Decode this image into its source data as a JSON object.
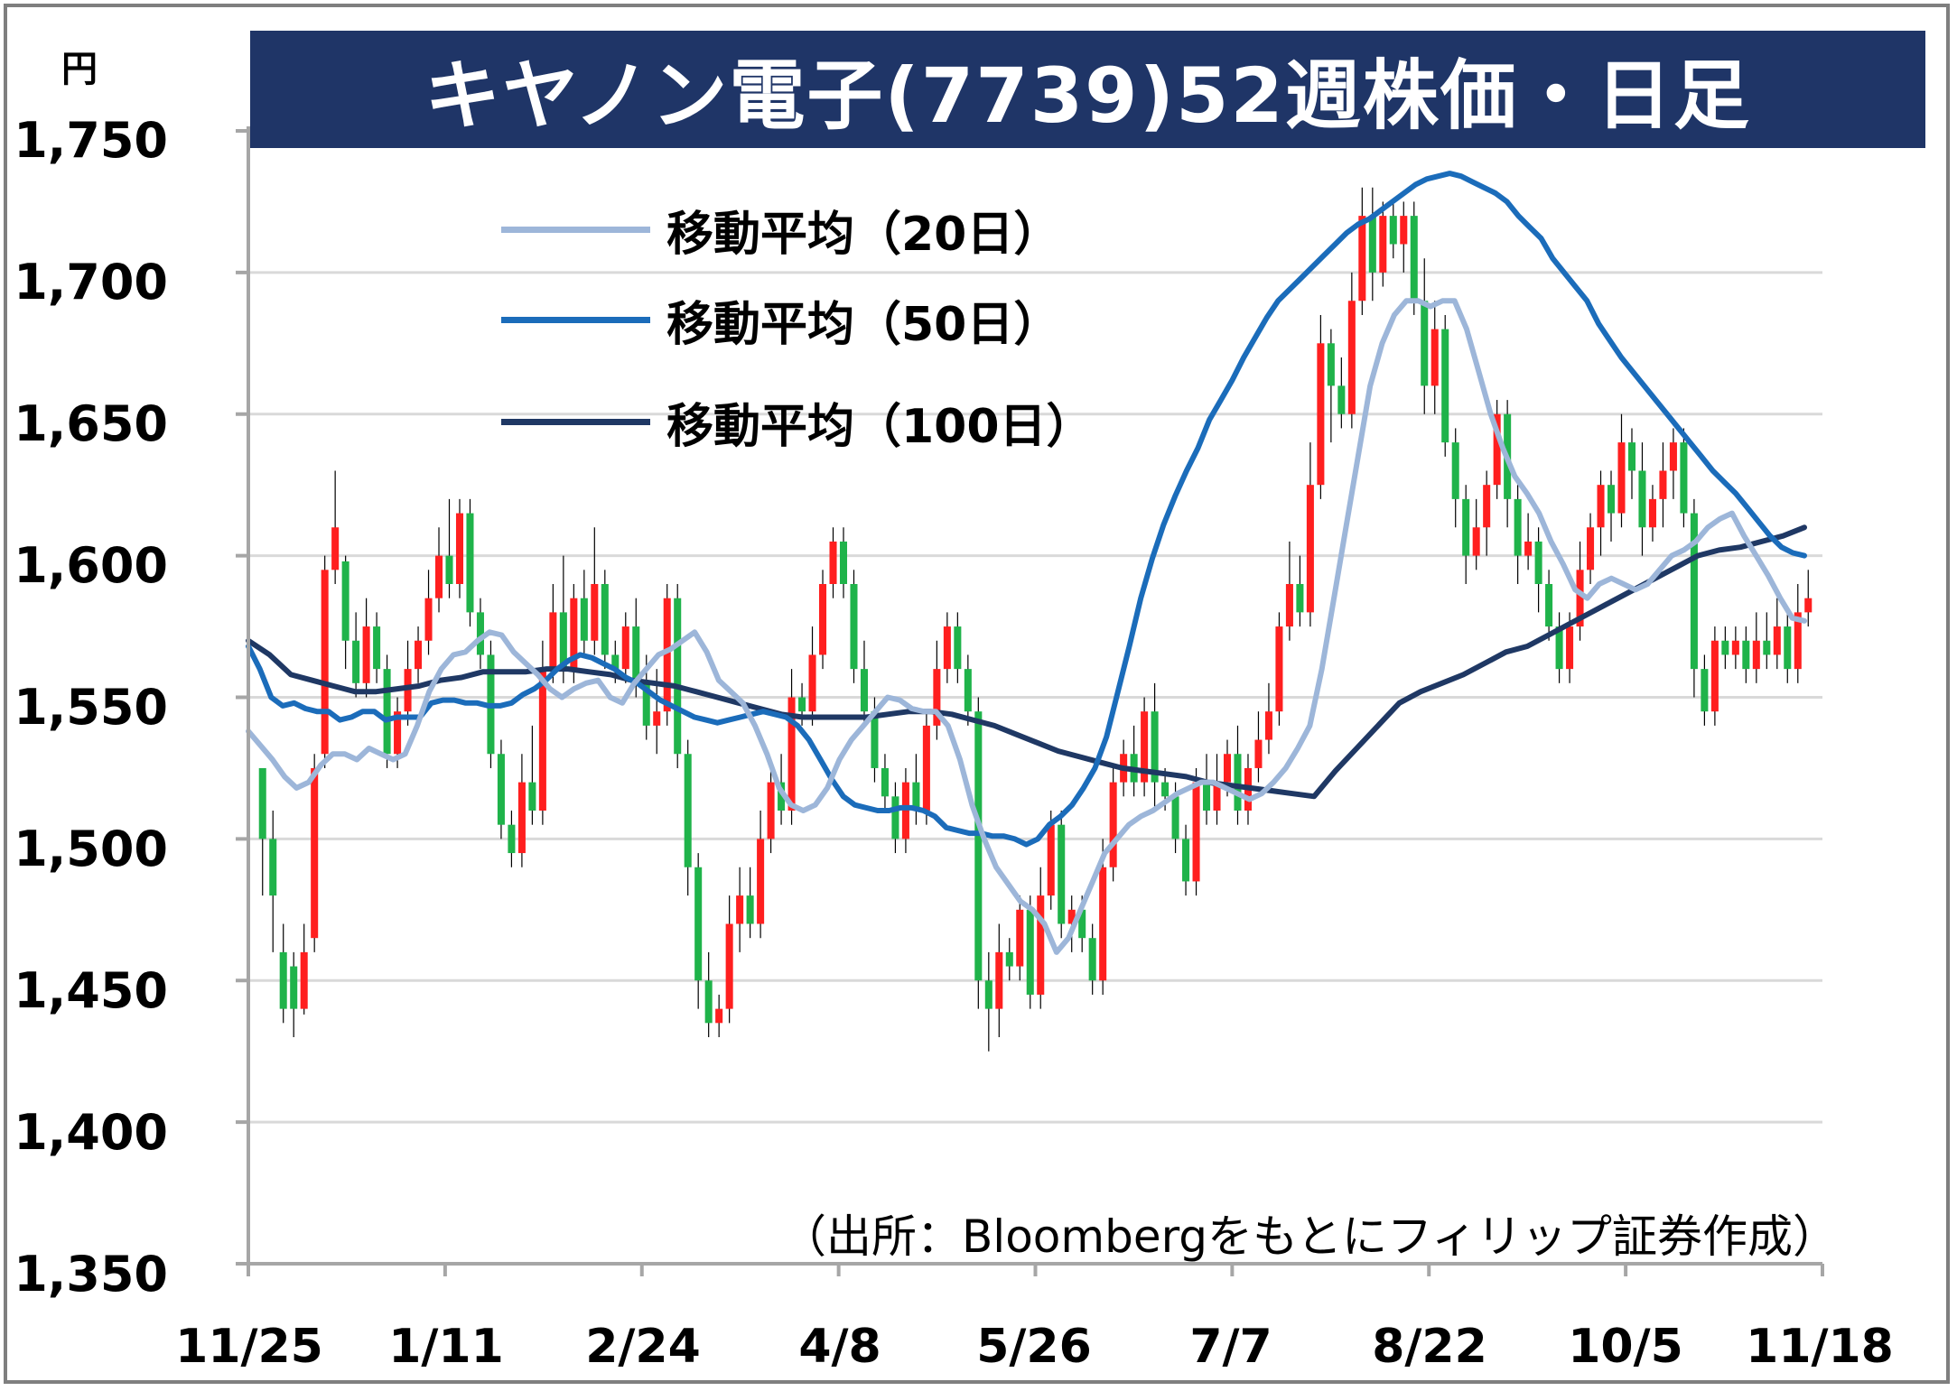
{
  "title": "キヤノン電子(7739)52週株価・日足",
  "unit": "円",
  "source_note": "（出所：Bloombergをもとにフィリップ証券作成）",
  "colors": {
    "title_bg": "#1f3567",
    "up": "#ff1f1f",
    "down": "#1fb34a",
    "grid": "#d9d9d9",
    "axis": "#a6a6a6"
  },
  "chart_data": {
    "type": "candlestick",
    "title": "キヤノン電子(7739)52週株価・日足",
    "ylim": [
      1350,
      1750
    ],
    "yticks": [
      "1,350",
      "1,400",
      "1,450",
      "1,500",
      "1,550",
      "1,600",
      "1,650",
      "1,700",
      "1,750"
    ],
    "yvalues": [
      1350,
      1400,
      1450,
      1500,
      1550,
      1600,
      1650,
      1700,
      1750
    ],
    "xticks": [
      "11/25",
      "1/11",
      "2/24",
      "4/8",
      "5/26",
      "7/7",
      "8/22",
      "10/5",
      "11/18"
    ],
    "grid": true,
    "legend_position": "top-left",
    "series": [
      {
        "name": "移動平均（20日）",
        "color": "#9db6d9",
        "values": [
          1538,
          1533,
          1528,
          1522,
          1518,
          1520,
          1526,
          1530,
          1530,
          1528,
          1532,
          1530,
          1528,
          1530,
          1540,
          1552,
          1560,
          1565,
          1566,
          1570,
          1573,
          1572,
          1566,
          1562,
          1558,
          1553,
          1550,
          1553,
          1555,
          1556,
          1550,
          1548,
          1555,
          1560,
          1565,
          1567,
          1570,
          1573,
          1566,
          1556,
          1552,
          1548,
          1540,
          1530,
          1518,
          1512,
          1510,
          1512,
          1518,
          1528,
          1535,
          1540,
          1545,
          1550,
          1549,
          1546,
          1545,
          1545,
          1540,
          1528,
          1512,
          1500,
          1490,
          1484,
          1478,
          1475,
          1470,
          1460,
          1465,
          1475,
          1485,
          1495,
          1500,
          1505,
          1508,
          1510,
          1513,
          1516,
          1518,
          1520,
          1520,
          1518,
          1516,
          1514,
          1516,
          1520,
          1525,
          1532,
          1540,
          1560,
          1585,
          1610,
          1635,
          1660,
          1675,
          1685,
          1690,
          1690,
          1688,
          1690,
          1690,
          1680,
          1665,
          1650,
          1638,
          1628,
          1622,
          1615,
          1605,
          1597,
          1588,
          1585,
          1590,
          1592,
          1590,
          1588,
          1590,
          1595,
          1600,
          1602,
          1605,
          1610,
          1613,
          1615,
          1607,
          1600,
          1593,
          1585,
          1578,
          1577
        ]
      },
      {
        "name": "移動平均（50日）",
        "color": "#1b6cba",
        "values": [
          1568,
          1560,
          1550,
          1547,
          1548,
          1546,
          1545,
          1545,
          1542,
          1543,
          1545,
          1545,
          1542,
          1543,
          1543,
          1543,
          1548,
          1549,
          1549,
          1548,
          1548,
          1547,
          1547,
          1548,
          1551,
          1553,
          1556,
          1560,
          1563,
          1565,
          1564,
          1562,
          1560,
          1557,
          1555,
          1552,
          1549,
          1547,
          1545,
          1543,
          1542,
          1541,
          1542,
          1543,
          1544,
          1545,
          1544,
          1543,
          1540,
          1535,
          1528,
          1521,
          1515,
          1512,
          1511,
          1510,
          1510,
          1511,
          1511,
          1510,
          1508,
          1504,
          1503,
          1502,
          1502,
          1501,
          1501,
          1500,
          1498,
          1500,
          1505,
          1508,
          1512,
          1518,
          1525,
          1536,
          1552,
          1568,
          1585,
          1599,
          1611,
          1621,
          1630,
          1638,
          1648,
          1655,
          1662,
          1670,
          1677,
          1684,
          1690,
          1694,
          1698,
          1702,
          1706,
          1710,
          1714,
          1717,
          1719,
          1722,
          1725,
          1728,
          1731,
          1733,
          1734,
          1735,
          1734,
          1732,
          1730,
          1728,
          1725,
          1720,
          1716,
          1712,
          1705,
          1700,
          1695,
          1690,
          1682,
          1676,
          1670,
          1665,
          1660,
          1655,
          1650,
          1645,
          1640,
          1635,
          1630,
          1626,
          1622,
          1617,
          1612,
          1607,
          1603,
          1601,
          1600
        ]
      },
      {
        "name": "移動平均（100日）",
        "color": "#1f3864",
        "values": [
          1570,
          1565,
          1558,
          1556,
          1554,
          1552,
          1552,
          1553,
          1554,
          1556,
          1557,
          1559,
          1559,
          1559,
          1560,
          1560,
          1559,
          1558,
          1556,
          1555,
          1554,
          1552,
          1550,
          1548,
          1546,
          1544,
          1543,
          1543,
          1543,
          1543,
          1544,
          1545,
          1545,
          1544,
          1542,
          1540,
          1537,
          1534,
          1531,
          1529,
          1527,
          1525,
          1524,
          1523,
          1522,
          1520,
          1519,
          1518,
          1517,
          1516,
          1515,
          1524,
          1532,
          1540,
          1548,
          1552,
          1555,
          1558,
          1562,
          1566,
          1568,
          1572,
          1576,
          1580,
          1584,
          1588,
          1592,
          1596,
          1600,
          1602,
          1603,
          1605,
          1607,
          1610
        ]
      }
    ],
    "candles": {
      "up_color": "#ff1f1f",
      "down_color": "#1fb34a",
      "values": [
        [
          1525,
          1500,
          1480,
          1525
        ],
        [
          1500,
          1480,
          1460,
          1510
        ],
        [
          1460,
          1440,
          1435,
          1470
        ],
        [
          1455,
          1440,
          1430,
          1460
        ],
        [
          1440,
          1460,
          1438,
          1470
        ],
        [
          1465,
          1525,
          1460,
          1530
        ],
        [
          1530,
          1595,
          1525,
          1600
        ],
        [
          1595,
          1610,
          1590,
          1630
        ],
        [
          1598,
          1570,
          1560,
          1600
        ],
        [
          1570,
          1555,
          1550,
          1580
        ],
        [
          1555,
          1575,
          1550,
          1585
        ],
        [
          1575,
          1560,
          1555,
          1580
        ],
        [
          1560,
          1530,
          1525,
          1565
        ],
        [
          1530,
          1545,
          1525,
          1550
        ],
        [
          1545,
          1560,
          1540,
          1570
        ],
        [
          1560,
          1570,
          1555,
          1575
        ],
        [
          1570,
          1585,
          1565,
          1595
        ],
        [
          1585,
          1600,
          1580,
          1610
        ],
        [
          1600,
          1590,
          1585,
          1620
        ],
        [
          1590,
          1615,
          1585,
          1620
        ],
        [
          1615,
          1580,
          1575,
          1620
        ],
        [
          1580,
          1565,
          1560,
          1585
        ],
        [
          1565,
          1530,
          1525,
          1570
        ],
        [
          1530,
          1505,
          1500,
          1535
        ],
        [
          1505,
          1495,
          1490,
          1510
        ],
        [
          1495,
          1520,
          1490,
          1530
        ],
        [
          1520,
          1510,
          1505,
          1540
        ],
        [
          1510,
          1560,
          1505,
          1570
        ],
        [
          1560,
          1580,
          1555,
          1590
        ],
        [
          1580,
          1560,
          1555,
          1600
        ],
        [
          1560,
          1585,
          1555,
          1590
        ],
        [
          1585,
          1570,
          1565,
          1595
        ],
        [
          1570,
          1590,
          1565,
          1610
        ],
        [
          1590,
          1565,
          1560,
          1595
        ],
        [
          1565,
          1560,
          1555,
          1570
        ],
        [
          1560,
          1575,
          1555,
          1580
        ],
        [
          1575,
          1555,
          1550,
          1585
        ],
        [
          1555,
          1540,
          1535,
          1565
        ],
        [
          1540,
          1545,
          1530,
          1560
        ],
        [
          1545,
          1585,
          1540,
          1590
        ],
        [
          1585,
          1530,
          1525,
          1590
        ],
        [
          1530,
          1490,
          1480,
          1535
        ],
        [
          1490,
          1450,
          1440,
          1495
        ],
        [
          1450,
          1435,
          1430,
          1460
        ],
        [
          1435,
          1440,
          1430,
          1445
        ],
        [
          1440,
          1470,
          1435,
          1480
        ],
        [
          1470,
          1480,
          1460,
          1490
        ],
        [
          1480,
          1470,
          1465,
          1490
        ],
        [
          1470,
          1500,
          1465,
          1510
        ],
        [
          1500,
          1520,
          1495,
          1525
        ],
        [
          1520,
          1510,
          1505,
          1530
        ],
        [
          1510,
          1550,
          1505,
          1560
        ],
        [
          1550,
          1545,
          1540,
          1555
        ],
        [
          1545,
          1565,
          1540,
          1575
        ],
        [
          1565,
          1590,
          1560,
          1595
        ],
        [
          1590,
          1605,
          1585,
          1610
        ],
        [
          1605,
          1590,
          1585,
          1610
        ],
        [
          1590,
          1560,
          1555,
          1595
        ],
        [
          1560,
          1545,
          1540,
          1570
        ],
        [
          1545,
          1525,
          1520,
          1550
        ],
        [
          1525,
          1515,
          1510,
          1530
        ],
        [
          1515,
          1500,
          1495,
          1520
        ],
        [
          1500,
          1520,
          1495,
          1525
        ],
        [
          1520,
          1510,
          1505,
          1530
        ],
        [
          1510,
          1540,
          1505,
          1545
        ],
        [
          1540,
          1560,
          1535,
          1570
        ],
        [
          1560,
          1575,
          1555,
          1580
        ],
        [
          1575,
          1560,
          1555,
          1580
        ],
        [
          1560,
          1545,
          1540,
          1565
        ],
        [
          1545,
          1450,
          1440,
          1550
        ],
        [
          1450,
          1440,
          1425,
          1460
        ],
        [
          1440,
          1460,
          1430,
          1470
        ],
        [
          1460,
          1455,
          1450,
          1465
        ],
        [
          1455,
          1475,
          1450,
          1480
        ],
        [
          1475,
          1445,
          1440,
          1480
        ],
        [
          1445,
          1480,
          1440,
          1490
        ],
        [
          1480,
          1505,
          1475,
          1510
        ],
        [
          1505,
          1470,
          1465,
          1510
        ],
        [
          1470,
          1475,
          1460,
          1480
        ],
        [
          1475,
          1465,
          1460,
          1480
        ],
        [
          1465,
          1450,
          1445,
          1470
        ],
        [
          1450,
          1490,
          1445,
          1500
        ],
        [
          1490,
          1520,
          1485,
          1525
        ],
        [
          1520,
          1530,
          1515,
          1535
        ],
        [
          1530,
          1520,
          1515,
          1540
        ],
        [
          1520,
          1545,
          1515,
          1550
        ],
        [
          1545,
          1520,
          1510,
          1555
        ],
        [
          1520,
          1515,
          1510,
          1525
        ],
        [
          1515,
          1500,
          1495,
          1520
        ],
        [
          1500,
          1485,
          1480,
          1505
        ],
        [
          1485,
          1520,
          1480,
          1525
        ],
        [
          1520,
          1510,
          1505,
          1530
        ],
        [
          1510,
          1520,
          1505,
          1530
        ],
        [
          1520,
          1530,
          1515,
          1535
        ],
        [
          1530,
          1510,
          1505,
          1540
        ],
        [
          1510,
          1525,
          1505,
          1530
        ],
        [
          1525,
          1535,
          1520,
          1545
        ],
        [
          1535,
          1545,
          1530,
          1555
        ],
        [
          1545,
          1575,
          1540,
          1580
        ],
        [
          1575,
          1590,
          1570,
          1605
        ],
        [
          1590,
          1580,
          1575,
          1600
        ],
        [
          1580,
          1625,
          1575,
          1640
        ],
        [
          1625,
          1675,
          1620,
          1685
        ],
        [
          1675,
          1660,
          1640,
          1680
        ],
        [
          1660,
          1650,
          1645,
          1670
        ],
        [
          1650,
          1690,
          1645,
          1700
        ],
        [
          1690,
          1720,
          1685,
          1730
        ],
        [
          1720,
          1700,
          1690,
          1730
        ],
        [
          1700,
          1720,
          1695,
          1725
        ],
        [
          1720,
          1710,
          1705,
          1725
        ],
        [
          1710,
          1720,
          1700,
          1725
        ],
        [
          1720,
          1690,
          1685,
          1725
        ],
        [
          1690,
          1660,
          1650,
          1705
        ],
        [
          1660,
          1680,
          1650,
          1690
        ],
        [
          1680,
          1640,
          1635,
          1685
        ],
        [
          1640,
          1620,
          1610,
          1645
        ],
        [
          1620,
          1600,
          1590,
          1625
        ],
        [
          1600,
          1610,
          1595,
          1620
        ],
        [
          1610,
          1625,
          1600,
          1630
        ],
        [
          1625,
          1650,
          1620,
          1655
        ],
        [
          1650,
          1620,
          1610,
          1655
        ],
        [
          1620,
          1600,
          1590,
          1625
        ],
        [
          1600,
          1605,
          1595,
          1615
        ],
        [
          1605,
          1590,
          1580,
          1610
        ],
        [
          1590,
          1575,
          1570,
          1595
        ],
        [
          1575,
          1560,
          1555,
          1580
        ],
        [
          1560,
          1575,
          1555,
          1580
        ],
        [
          1575,
          1595,
          1570,
          1605
        ],
        [
          1595,
          1610,
          1590,
          1615
        ],
        [
          1610,
          1625,
          1600,
          1630
        ],
        [
          1625,
          1615,
          1605,
          1630
        ],
        [
          1615,
          1640,
          1610,
          1650
        ],
        [
          1640,
          1630,
          1620,
          1645
        ],
        [
          1630,
          1610,
          1600,
          1640
        ],
        [
          1610,
          1620,
          1605,
          1625
        ],
        [
          1620,
          1630,
          1610,
          1640
        ],
        [
          1630,
          1640,
          1620,
          1645
        ],
        [
          1640,
          1615,
          1610,
          1645
        ],
        [
          1615,
          1560,
          1550,
          1620
        ],
        [
          1560,
          1545,
          1540,
          1565
        ],
        [
          1545,
          1570,
          1540,
          1575
        ],
        [
          1570,
          1565,
          1560,
          1575
        ],
        [
          1565,
          1570,
          1560,
          1575
        ],
        [
          1570,
          1560,
          1555,
          1575
        ],
        [
          1560,
          1570,
          1555,
          1580
        ],
        [
          1570,
          1565,
          1560,
          1580
        ],
        [
          1565,
          1575,
          1560,
          1585
        ],
        [
          1575,
          1560,
          1555,
          1580
        ],
        [
          1560,
          1580,
          1555,
          1590
        ],
        [
          1580,
          1585,
          1575,
          1595
        ]
      ]
    }
  },
  "legend": [
    {
      "label": "移動平均（20日）",
      "color": "#9db6d9"
    },
    {
      "label": "移動平均（50日）",
      "color": "#1b6cba"
    },
    {
      "label": "移動平均（100日）",
      "color": "#1f3864"
    }
  ]
}
